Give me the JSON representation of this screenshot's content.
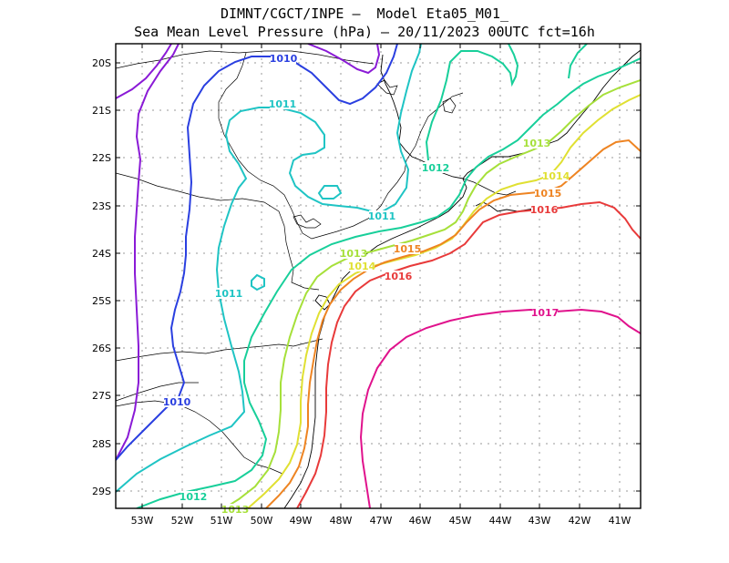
{
  "title_line1": "DIMNT/CGCT/INPE –  Model Eta05_M01_",
  "title_line2": "Sea Mean Level Pressure (hPa) – 20/11/2023 00UTC fct=16h",
  "axes": {
    "lat_labels": [
      "20S",
      "21S",
      "22S",
      "23S",
      "24S",
      "25S",
      "26S",
      "27S",
      "28S",
      "29S"
    ],
    "lon_labels": [
      "53W",
      "52W",
      "51W",
      "50W",
      "49W",
      "48W",
      "47W",
      "46W",
      "45W",
      "44W",
      "43W",
      "42W",
      "41W"
    ]
  },
  "isobars": [
    {
      "value": "1010",
      "color": "#2a3fe0"
    },
    {
      "value": "1011",
      "color": "#1fc4c4"
    },
    {
      "value": "1012",
      "color": "#18cf9a"
    },
    {
      "value": "1013",
      "color": "#a6e03a"
    },
    {
      "value": "1014",
      "color": "#e0e032"
    },
    {
      "value": "1015",
      "color": "#ee8422"
    },
    {
      "value": "1016",
      "color": "#e83a3a"
    },
    {
      "value": "1017",
      "color": "#e0128c"
    }
  ],
  "contour_labels": [
    {
      "text": "1010",
      "color": "#2a3fe0"
    },
    {
      "text": "1011",
      "color": "#1fc4c4"
    },
    {
      "text": "1011",
      "color": "#1fc4c4"
    },
    {
      "text": "1011",
      "color": "#1fc4c4"
    },
    {
      "text": "1012",
      "color": "#18cf9a"
    },
    {
      "text": "1013",
      "color": "#a6e03a"
    },
    {
      "text": "1013",
      "color": "#a6e03a"
    },
    {
      "text": "1014",
      "color": "#e0e032"
    },
    {
      "text": "1014",
      "color": "#e0e032"
    },
    {
      "text": "1015",
      "color": "#ee8422"
    },
    {
      "text": "1015",
      "color": "#ee8422"
    },
    {
      "text": "1016",
      "color": "#e83a3a"
    },
    {
      "text": "1016",
      "color": "#e83a3a"
    },
    {
      "text": "1017",
      "color": "#e0128c"
    },
    {
      "text": "1010",
      "color": "#2a3fe0"
    },
    {
      "text": "1012",
      "color": "#18cf9a"
    },
    {
      "text": "1013",
      "color": "#a6e03a"
    }
  ]
}
